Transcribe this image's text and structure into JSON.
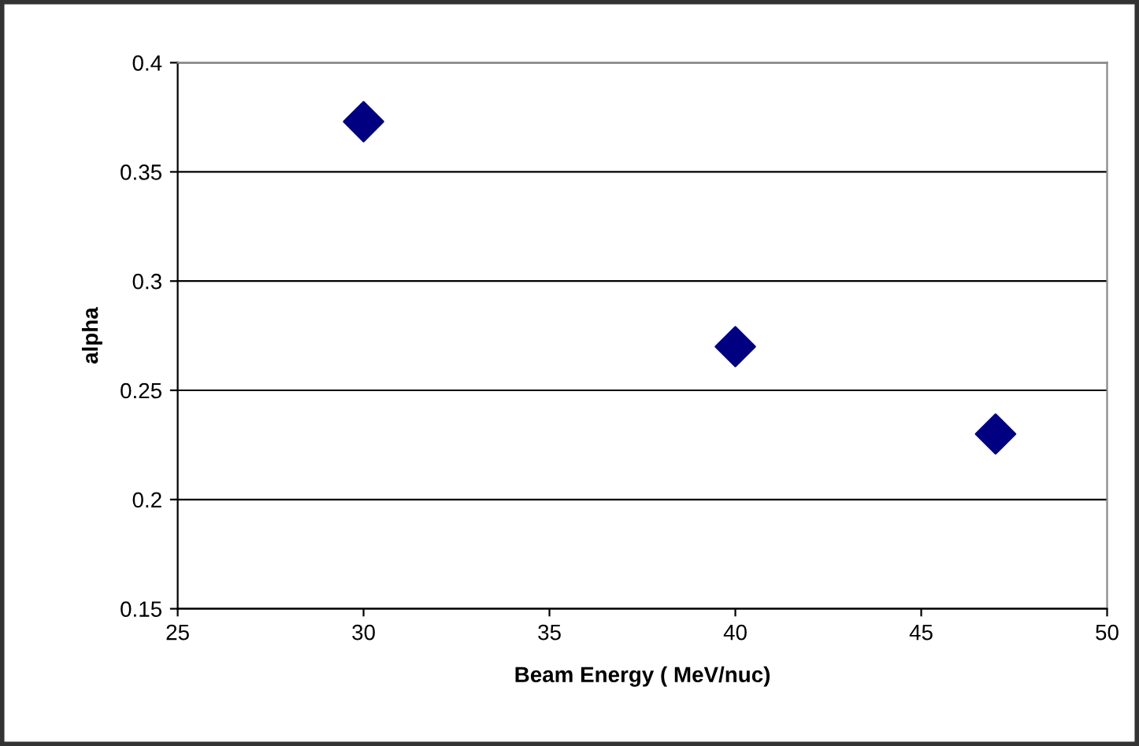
{
  "chart_data": {
    "type": "scatter",
    "xlabel": "Beam Energy ( MeV/nuc)",
    "ylabel": "alpha",
    "x": [
      30,
      40,
      47
    ],
    "series": [
      {
        "color": "#000080",
        "values": [
          0.373,
          0.27,
          0.23
        ]
      }
    ],
    "xlim": [
      25,
      50
    ],
    "xticks": [
      25,
      30,
      35,
      40,
      45,
      50
    ],
    "ylim": [
      0.15,
      0.4
    ],
    "yticks": [
      0.15,
      0.2,
      0.25,
      0.3,
      0.35,
      0.4
    ],
    "grid": "y",
    "marker": "diamond",
    "legend": false
  }
}
